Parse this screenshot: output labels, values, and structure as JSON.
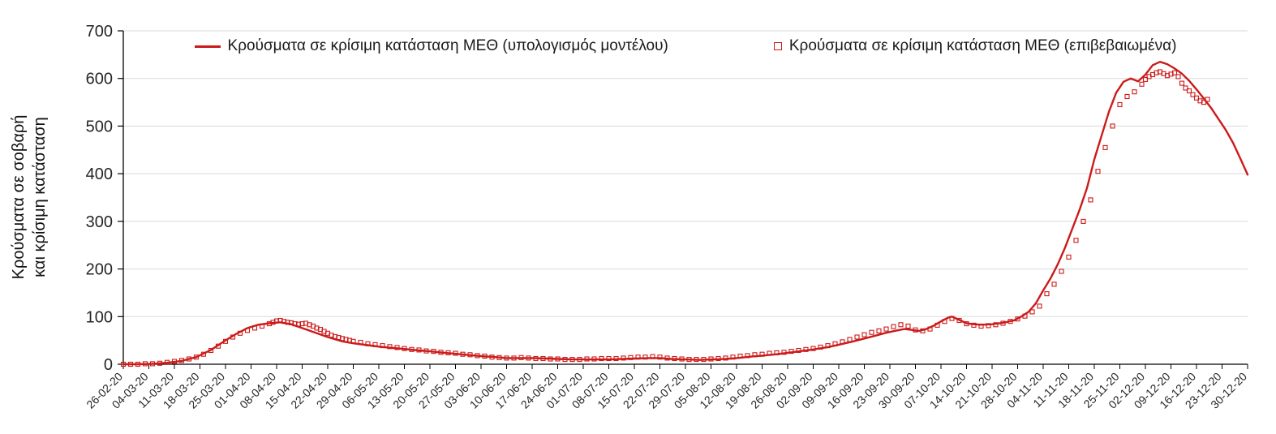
{
  "page": {
    "background": "#ffffff"
  },
  "chart_data": {
    "type": "line",
    "title": "",
    "xlabel": "",
    "ylabel_lines": [
      "Κρούσματα σε σοβαρή",
      "και κρίσιμη κατάσταση"
    ],
    "ylim": [
      0,
      700
    ],
    "y_ticks": [
      0,
      100,
      200,
      300,
      400,
      500,
      600,
      700
    ],
    "grid": "horizontal-light",
    "legend_position": "top",
    "x_days_per_tick": 7,
    "x_range_days": [
      0,
      308
    ],
    "x_tick_labels": [
      "26-02-20",
      "04-03-20",
      "11-03-20",
      "18-03-20",
      "25-03-20",
      "01-04-20",
      "08-04-20",
      "15-04-20",
      "22-04-20",
      "29-04-20",
      "06-05-20",
      "13-05-20",
      "20-05-20",
      "27-05-20",
      "03-06-20",
      "10-06-20",
      "17-06-20",
      "24-06-20",
      "01-07-20",
      "08-07-20",
      "15-07-20",
      "22-07-20",
      "29-07-20",
      "05-08-20",
      "12-08-20",
      "19-08-20",
      "26-08-20",
      "02-09-20",
      "09-09-20",
      "16-09-20",
      "23-09-20",
      "30-09-20",
      "07-10-20",
      "14-10-20",
      "21-10-20",
      "28-10-20",
      "04-11-20",
      "11-11-20",
      "18-11-20",
      "25-11-20",
      "02-12-20",
      "09-12-20",
      "16-12-20",
      "23-12-20",
      "30-12-20"
    ],
    "colors": {
      "grid": "#d9d9d9",
      "axis": "#000000",
      "text": "#262626"
    },
    "series": [
      {
        "name": "Κρούσματα σε κρίσιμη κατάσταση ΜΕΘ (υπολογισμός μοντέλου)",
        "style": "line",
        "color": "#cc1a1a",
        "points": [
          [
            0,
            0
          ],
          [
            4,
            0
          ],
          [
            8,
            1
          ],
          [
            12,
            3
          ],
          [
            16,
            7
          ],
          [
            20,
            15
          ],
          [
            24,
            30
          ],
          [
            28,
            50
          ],
          [
            31,
            64
          ],
          [
            34,
            76
          ],
          [
            37,
            83
          ],
          [
            40,
            86
          ],
          [
            43,
            88
          ],
          [
            46,
            84
          ],
          [
            49,
            76
          ],
          [
            52,
            68
          ],
          [
            56,
            57
          ],
          [
            60,
            48
          ],
          [
            63,
            44
          ],
          [
            67,
            40
          ],
          [
            70,
            37
          ],
          [
            74,
            34
          ],
          [
            77,
            32
          ],
          [
            81,
            29
          ],
          [
            84,
            27
          ],
          [
            88,
            24
          ],
          [
            91,
            22
          ],
          [
            95,
            19
          ],
          [
            98,
            17
          ],
          [
            102,
            15
          ],
          [
            105,
            13
          ],
          [
            109,
            13
          ],
          [
            112,
            13
          ],
          [
            116,
            12
          ],
          [
            119,
            11
          ],
          [
            123,
            10
          ],
          [
            126,
            10
          ],
          [
            130,
            10
          ],
          [
            133,
            10
          ],
          [
            137,
            11
          ],
          [
            140,
            12
          ],
          [
            144,
            13
          ],
          [
            147,
            13
          ],
          [
            150,
            11
          ],
          [
            154,
            10
          ],
          [
            158,
            9
          ],
          [
            161,
            10
          ],
          [
            165,
            11
          ],
          [
            168,
            13
          ],
          [
            172,
            16
          ],
          [
            175,
            18
          ],
          [
            179,
            21
          ],
          [
            182,
            24
          ],
          [
            186,
            28
          ],
          [
            189,
            31
          ],
          [
            193,
            36
          ],
          [
            196,
            41
          ],
          [
            200,
            48
          ],
          [
            203,
            54
          ],
          [
            206,
            60
          ],
          [
            209,
            66
          ],
          [
            212,
            71
          ],
          [
            214,
            74
          ],
          [
            216,
            72
          ],
          [
            218,
            70
          ],
          [
            220,
            74
          ],
          [
            222,
            81
          ],
          [
            224,
            90
          ],
          [
            226,
            98
          ],
          [
            227,
            100
          ],
          [
            229,
            93
          ],
          [
            231,
            86
          ],
          [
            233,
            84
          ],
          [
            235,
            83
          ],
          [
            238,
            84
          ],
          [
            241,
            87
          ],
          [
            244,
            92
          ],
          [
            246,
            100
          ],
          [
            248,
            110
          ],
          [
            250,
            128
          ],
          [
            252,
            155
          ],
          [
            254,
            180
          ],
          [
            256,
            210
          ],
          [
            258,
            245
          ],
          [
            260,
            285
          ],
          [
            262,
            325
          ],
          [
            264,
            370
          ],
          [
            266,
            430
          ],
          [
            268,
            480
          ],
          [
            270,
            530
          ],
          [
            272,
            570
          ],
          [
            274,
            593
          ],
          [
            276,
            600
          ],
          [
            277,
            597
          ],
          [
            278,
            594
          ],
          [
            280,
            608
          ],
          [
            282,
            628
          ],
          [
            284,
            635
          ],
          [
            286,
            630
          ],
          [
            288,
            621
          ],
          [
            290,
            610
          ],
          [
            292,
            595
          ],
          [
            294,
            577
          ],
          [
            296,
            558
          ],
          [
            298,
            538
          ],
          [
            300,
            515
          ],
          [
            302,
            492
          ],
          [
            304,
            465
          ],
          [
            306,
            432
          ],
          [
            308,
            398
          ]
        ]
      },
      {
        "name": "Κρούσματα σε κρίσιμη κατάσταση ΜΕΘ (επιβεβαιωμένα)",
        "style": "scatter",
        "marker": "open-square",
        "color": "#cc1a1a",
        "points": [
          [
            0,
            0
          ],
          [
            2,
            0
          ],
          [
            4,
            0
          ],
          [
            6,
            1
          ],
          [
            8,
            1
          ],
          [
            10,
            2
          ],
          [
            12,
            4
          ],
          [
            14,
            6
          ],
          [
            16,
            8
          ],
          [
            18,
            11
          ],
          [
            20,
            15
          ],
          [
            22,
            21
          ],
          [
            24,
            29
          ],
          [
            26,
            38
          ],
          [
            28,
            48
          ],
          [
            30,
            57
          ],
          [
            32,
            65
          ],
          [
            34,
            71
          ],
          [
            36,
            76
          ],
          [
            38,
            80
          ],
          [
            40,
            85
          ],
          [
            41,
            88
          ],
          [
            42,
            91
          ],
          [
            43,
            92
          ],
          [
            44,
            90
          ],
          [
            45,
            88
          ],
          [
            46,
            87
          ],
          [
            47,
            85
          ],
          [
            48,
            84
          ],
          [
            49,
            85
          ],
          [
            50,
            86
          ],
          [
            51,
            83
          ],
          [
            52,
            80
          ],
          [
            53,
            76
          ],
          [
            54,
            73
          ],
          [
            55,
            69
          ],
          [
            56,
            65
          ],
          [
            57,
            61
          ],
          [
            58,
            58
          ],
          [
            59,
            56
          ],
          [
            60,
            54
          ],
          [
            61,
            52
          ],
          [
            62,
            50
          ],
          [
            63,
            48
          ],
          [
            65,
            46
          ],
          [
            67,
            43
          ],
          [
            69,
            41
          ],
          [
            71,
            39
          ],
          [
            73,
            37
          ],
          [
            75,
            35
          ],
          [
            77,
            33
          ],
          [
            79,
            31
          ],
          [
            81,
            30
          ],
          [
            83,
            28
          ],
          [
            85,
            27
          ],
          [
            87,
            25
          ],
          [
            89,
            24
          ],
          [
            91,
            23
          ],
          [
            93,
            21
          ],
          [
            95,
            20
          ],
          [
            97,
            18
          ],
          [
            99,
            17
          ],
          [
            101,
            15
          ],
          [
            103,
            14
          ],
          [
            105,
            13
          ],
          [
            107,
            13
          ],
          [
            109,
            14
          ],
          [
            111,
            13
          ],
          [
            113,
            12
          ],
          [
            115,
            12
          ],
          [
            117,
            11
          ],
          [
            119,
            11
          ],
          [
            121,
            10
          ],
          [
            123,
            10
          ],
          [
            125,
            10
          ],
          [
            127,
            11
          ],
          [
            129,
            11
          ],
          [
            131,
            12
          ],
          [
            133,
            12
          ],
          [
            135,
            12
          ],
          [
            137,
            13
          ],
          [
            139,
            14
          ],
          [
            141,
            15
          ],
          [
            143,
            15
          ],
          [
            145,
            16
          ],
          [
            147,
            15
          ],
          [
            149,
            13
          ],
          [
            151,
            12
          ],
          [
            153,
            11
          ],
          [
            155,
            10
          ],
          [
            157,
            10
          ],
          [
            159,
            10
          ],
          [
            161,
            11
          ],
          [
            163,
            12
          ],
          [
            165,
            13
          ],
          [
            167,
            15
          ],
          [
            169,
            17
          ],
          [
            171,
            18
          ],
          [
            173,
            20
          ],
          [
            175,
            21
          ],
          [
            177,
            23
          ],
          [
            179,
            24
          ],
          [
            181,
            25
          ],
          [
            183,
            27
          ],
          [
            185,
            29
          ],
          [
            187,
            31
          ],
          [
            189,
            33
          ],
          [
            191,
            36
          ],
          [
            193,
            39
          ],
          [
            195,
            43
          ],
          [
            197,
            47
          ],
          [
            199,
            52
          ],
          [
            201,
            57
          ],
          [
            203,
            62
          ],
          [
            205,
            67
          ],
          [
            207,
            70
          ],
          [
            209,
            74
          ],
          [
            211,
            79
          ],
          [
            213,
            83
          ],
          [
            215,
            80
          ],
          [
            217,
            72
          ],
          [
            219,
            70
          ],
          [
            221,
            74
          ],
          [
            223,
            82
          ],
          [
            225,
            90
          ],
          [
            227,
            96
          ],
          [
            229,
            92
          ],
          [
            231,
            85
          ],
          [
            233,
            82
          ],
          [
            235,
            80
          ],
          [
            237,
            81
          ],
          [
            239,
            83
          ],
          [
            241,
            86
          ],
          [
            243,
            90
          ],
          [
            245,
            95
          ],
          [
            247,
            101
          ],
          [
            249,
            110
          ],
          [
            251,
            122
          ],
          [
            253,
            148
          ],
          [
            255,
            168
          ],
          [
            257,
            195
          ],
          [
            259,
            225
          ],
          [
            261,
            260
          ],
          [
            263,
            300
          ],
          [
            265,
            345
          ],
          [
            267,
            405
          ],
          [
            269,
            455
          ],
          [
            271,
            500
          ],
          [
            273,
            545
          ],
          [
            275,
            562
          ],
          [
            277,
            572
          ],
          [
            279,
            588
          ],
          [
            280,
            598
          ],
          [
            281,
            604
          ],
          [
            282,
            608
          ],
          [
            283,
            612
          ],
          [
            284,
            614
          ],
          [
            285,
            610
          ],
          [
            286,
            606
          ],
          [
            287,
            609
          ],
          [
            288,
            612
          ],
          [
            289,
            604
          ],
          [
            290,
            590
          ],
          [
            291,
            580
          ],
          [
            292,
            574
          ],
          [
            293,
            566
          ],
          [
            294,
            559
          ],
          [
            295,
            553
          ],
          [
            296,
            550
          ],
          [
            297,
            556
          ]
        ]
      }
    ]
  }
}
